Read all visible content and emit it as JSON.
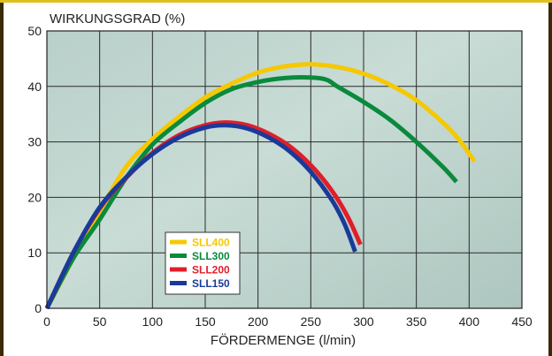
{
  "chart_data": {
    "type": "line",
    "title": "",
    "ylabel": "WIRKUNGSGRAD (%)",
    "xlabel": "FÖRDERMENGE (l/min)",
    "xlim": [
      0,
      450
    ],
    "ylim": [
      0,
      50
    ],
    "xticks": [
      0,
      50,
      100,
      150,
      200,
      250,
      300,
      350,
      400,
      450
    ],
    "yticks": [
      0,
      10,
      20,
      30,
      40,
      50
    ],
    "grid": true,
    "legend_position": "lower-left",
    "series": [
      {
        "name": "SLL400",
        "color": "#f5c800",
        "x": [
          0,
          25,
          50,
          75,
          100,
          125,
          150,
          175,
          200,
          225,
          250,
          275,
          300,
          325,
          350,
          375,
          390,
          405
        ],
        "y": [
          0,
          9,
          17.5,
          25.5,
          30.5,
          34.5,
          38,
          40.5,
          42.5,
          43.6,
          44,
          43.5,
          42.3,
          40.3,
          37.5,
          33.5,
          30.5,
          26.5
        ]
      },
      {
        "name": "SLL300",
        "color": "#0a8a3c",
        "x": [
          0,
          25,
          50,
          75,
          100,
          125,
          150,
          175,
          200,
          225,
          250,
          265,
          275,
          300,
          325,
          350,
          375,
          388
        ],
        "y": [
          0,
          9,
          16,
          23.5,
          29.5,
          33.5,
          37,
          39.5,
          40.8,
          41.5,
          41.6,
          41.2,
          40,
          37.2,
          34,
          30,
          25.5,
          22.8
        ]
      },
      {
        "name": "SLL200",
        "color": "#e01e2a",
        "x": [
          0,
          25,
          50,
          75,
          100,
          125,
          150,
          170,
          190,
          210,
          230,
          250,
          270,
          285,
          297
        ],
        "y": [
          0,
          10,
          18,
          23.5,
          28,
          31.2,
          33,
          33.5,
          33,
          31.5,
          29.2,
          25.8,
          21.2,
          16.5,
          11.5
        ]
      },
      {
        "name": "SLL150",
        "color": "#1a3a9a",
        "x": [
          0,
          25,
          50,
          75,
          100,
          125,
          150,
          170,
          190,
          210,
          230,
          250,
          270,
          282,
          292
        ],
        "y": [
          0,
          10,
          18.2,
          23.6,
          27.8,
          30.8,
          32.6,
          33,
          32.4,
          30.8,
          28.3,
          24.6,
          19.5,
          15.2,
          10.2
        ]
      }
    ]
  }
}
